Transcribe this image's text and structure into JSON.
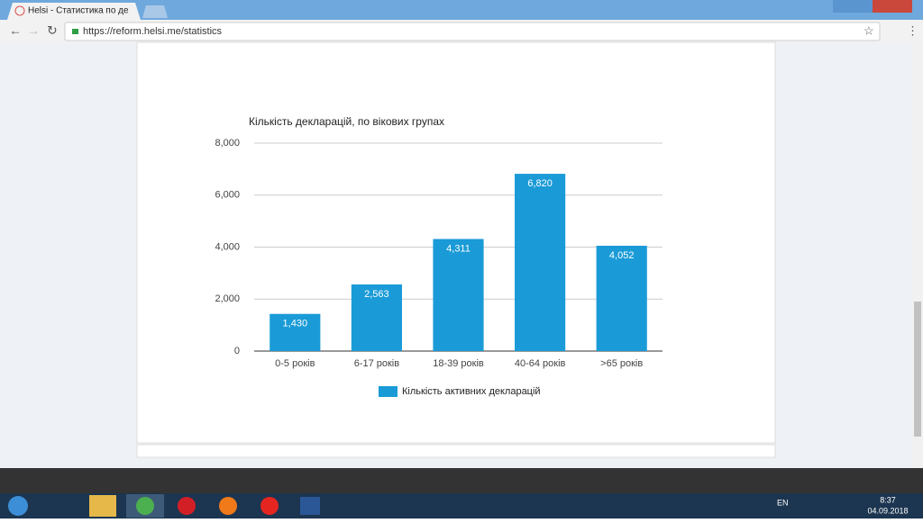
{
  "browser": {
    "tab_title": "Helsi - Статистика по де",
    "url": "https://reform.helsi.me/statistics"
  },
  "taskbar": {
    "language": "EN",
    "time": "8:37",
    "date": "04.09.2018"
  },
  "chart_data": {
    "type": "bar",
    "title": "Кількість декларацій, по вікових групах",
    "categories": [
      "0-5 років",
      "6-17 років",
      "18-39 років",
      "40-64 років",
      ">65 років"
    ],
    "series": [
      {
        "name": "Кількість активних декларацій",
        "color": "#1a9bd7",
        "values": [
          1430,
          2563,
          4311,
          6820,
          4052
        ],
        "value_labels": [
          "1,430",
          "2,563",
          "4,311",
          "6,820",
          "4,052"
        ]
      }
    ],
    "ylim": [
      0,
      8000
    ],
    "yticks": [
      0,
      {
        "value": 2000,
        "label": "2,000"
      },
      {
        "value": 4000,
        "label": "4,000"
      },
      {
        "value": 6000,
        "label": "6,000"
      },
      {
        "value": 8000,
        "label": "8,000"
      }
    ],
    "grid": true,
    "legend": "bottom"
  }
}
